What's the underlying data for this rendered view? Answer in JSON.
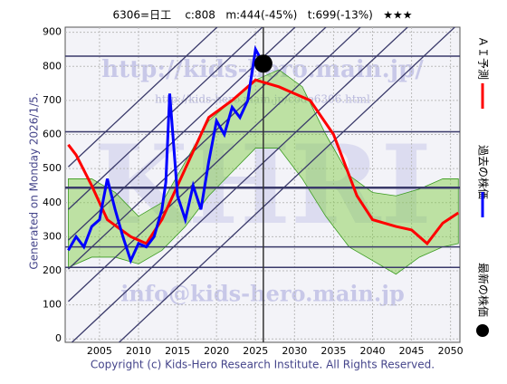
{
  "chart_data": {
    "type": "line",
    "title": "6306=日工    c:808   m:444(-45%)   t:699(-13%)   ★★★",
    "side_label": "Generated on Monday 2026/1/5.",
    "footer": "Copyright (c) Kids-Hero Research Institute. All Rights Reserved.",
    "watermarks": [
      "http://kids-hero.main.jp/",
      "http://kids-hero.main.jp/code6306.html",
      "info@kids-hero.main.jp",
      "KHRI"
    ],
    "xlim": [
      2000.6,
      2051.2
    ],
    "xticks": [
      2005,
      2010,
      2015,
      2020,
      2025,
      2030,
      2035,
      2040,
      2045,
      2050
    ],
    "ylim": [
      -10,
      915
    ],
    "yticks": [
      0,
      100,
      200,
      300,
      400,
      500,
      600,
      700,
      800,
      900
    ],
    "grid": true,
    "levels": [
      830,
      608,
      444,
      270,
      210
    ],
    "now": 2026,
    "trend_lines": [
      [
        2001,
        505,
        2051,
        1580
      ],
      [
        2001,
        380,
        2051,
        1455
      ],
      [
        2001,
        290,
        2051,
        1365
      ],
      [
        2001,
        205,
        2051,
        1280
      ],
      [
        2001,
        110,
        2051,
        1185
      ],
      [
        2001,
        -20,
        2051,
        1055
      ],
      [
        2001,
        -150,
        2051,
        925
      ]
    ],
    "band": {
      "color": "#7ccc3c",
      "x": [
        2001,
        2004,
        2007,
        2010,
        2013,
        2016,
        2019,
        2022,
        2025,
        2028,
        2031,
        2034,
        2037,
        2040,
        2043,
        2046,
        2049,
        2051
      ],
      "upper": [
        470,
        470,
        430,
        360,
        400,
        520,
        640,
        700,
        760,
        790,
        740,
        600,
        480,
        430,
        420,
        440,
        470,
        470
      ],
      "lower": [
        210,
        240,
        240,
        220,
        260,
        330,
        420,
        490,
        560,
        560,
        470,
        360,
        270,
        230,
        190,
        240,
        270,
        280
      ]
    },
    "series": [
      {
        "name": "過去の株価",
        "color": "#0000ff",
        "x": [
          2001,
          2002,
          2003,
          2004,
          2005,
          2006,
          2007,
          2008,
          2009,
          2010,
          2011,
          2012,
          2013,
          2013.5,
          2014,
          2015,
          2016,
          2017,
          2018,
          2019,
          2020,
          2021,
          2022,
          2023,
          2024,
          2025,
          2026
        ],
        "values": [
          260,
          300,
          270,
          330,
          350,
          470,
          380,
          300,
          230,
          280,
          270,
          300,
          380,
          460,
          720,
          420,
          350,
          450,
          380,
          520,
          640,
          600,
          680,
          650,
          700,
          850,
          808
        ]
      },
      {
        "name": "ＡＩ予測",
        "color": "#ff0000",
        "x": [
          2001,
          2002,
          2004,
          2006,
          2009,
          2011,
          2013,
          2016,
          2019,
          2022,
          2025,
          2028,
          2030,
          2032,
          2035,
          2038,
          2040,
          2043,
          2045,
          2047,
          2049,
          2051
        ],
        "values": [
          570,
          540,
          450,
          350,
          300,
          280,
          350,
          500,
          650,
          700,
          760,
          740,
          720,
          700,
          600,
          420,
          350,
          330,
          320,
          280,
          340,
          370
        ]
      },
      {
        "name": "最新の株価",
        "color": "#000000",
        "x": [
          2026
        ],
        "values": [
          808
        ]
      }
    ]
  }
}
